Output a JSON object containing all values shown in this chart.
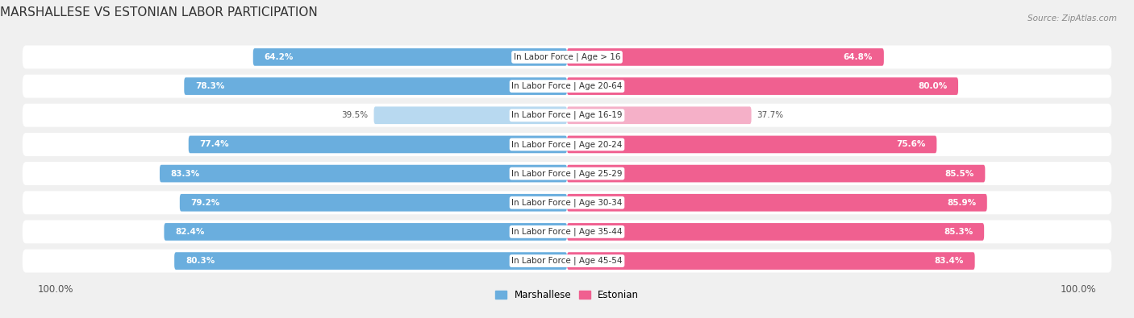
{
  "title": "MARSHALLESE VS ESTONIAN LABOR PARTICIPATION",
  "source": "Source: ZipAtlas.com",
  "categories": [
    "In Labor Force | Age > 16",
    "In Labor Force | Age 20-64",
    "In Labor Force | Age 16-19",
    "In Labor Force | Age 20-24",
    "In Labor Force | Age 25-29",
    "In Labor Force | Age 30-34",
    "In Labor Force | Age 35-44",
    "In Labor Force | Age 45-54"
  ],
  "marshallese": [
    64.2,
    78.3,
    39.5,
    77.4,
    83.3,
    79.2,
    82.4,
    80.3
  ],
  "estonian": [
    64.8,
    80.0,
    37.7,
    75.6,
    85.5,
    85.9,
    85.3,
    83.4
  ],
  "marshallese_color": "#6aaede",
  "marshallese_color_light": "#b8d9f0",
  "estonian_color": "#f06090",
  "estonian_color_light": "#f5b0c8",
  "background_color": "#f0f0f0",
  "row_bg_even": "#e8e8e8",
  "row_bg_odd": "#f0f0f0",
  "title_fontsize": 11,
  "label_fontsize": 7.5,
  "value_fontsize": 7.5,
  "legend_fontsize": 8.5
}
